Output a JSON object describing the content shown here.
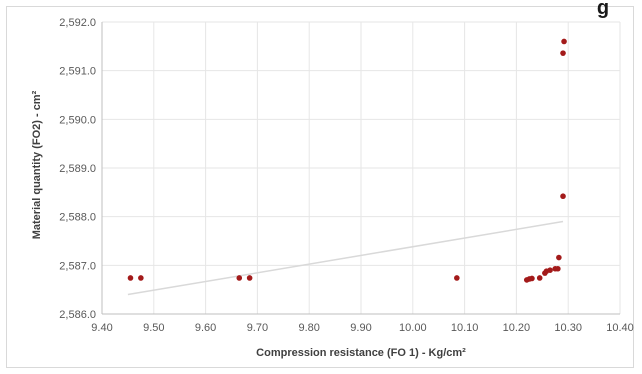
{
  "chart_data": {
    "type": "scatter",
    "title_fragment": "g",
    "xlabel": "Compression resistance (FO 1) - Kg/cm²",
    "ylabel": "Material quantity (FO2) - cm²",
    "xlim": [
      9.4,
      10.4
    ],
    "ylim": [
      2586.0,
      2592.0
    ],
    "x_ticks": [
      "9.40",
      "9.50",
      "9.60",
      "9.70",
      "9.80",
      "9.90",
      "10.00",
      "10.10",
      "10.20",
      "10.30",
      "10.40"
    ],
    "y_ticks": [
      "2,586.0",
      "2,587.0",
      "2,588.0",
      "2,589.0",
      "2,590.0",
      "2,591.0",
      "2,592.0"
    ],
    "grid": true,
    "point_color": "#a31a1a",
    "trendline_color": "#d9d9d9",
    "points": [
      {
        "x": 9.455,
        "y": 2586.74
      },
      {
        "x": 9.475,
        "y": 2586.74
      },
      {
        "x": 9.665,
        "y": 2586.74
      },
      {
        "x": 9.685,
        "y": 2586.74
      },
      {
        "x": 10.085,
        "y": 2586.74
      },
      {
        "x": 10.22,
        "y": 2586.7
      },
      {
        "x": 10.225,
        "y": 2586.72
      },
      {
        "x": 10.23,
        "y": 2586.73
      },
      {
        "x": 10.245,
        "y": 2586.74
      },
      {
        "x": 10.255,
        "y": 2586.84
      },
      {
        "x": 10.258,
        "y": 2586.88
      },
      {
        "x": 10.265,
        "y": 2586.9
      },
      {
        "x": 10.275,
        "y": 2586.93
      },
      {
        "x": 10.28,
        "y": 2586.93
      },
      {
        "x": 10.282,
        "y": 2587.16
      },
      {
        "x": 10.29,
        "y": 2588.42
      },
      {
        "x": 10.29,
        "y": 2591.36
      },
      {
        "x": 10.292,
        "y": 2591.6
      }
    ],
    "trendline": {
      "x": [
        9.45,
        10.29
      ],
      "y": [
        2586.4,
        2587.9
      ]
    }
  }
}
